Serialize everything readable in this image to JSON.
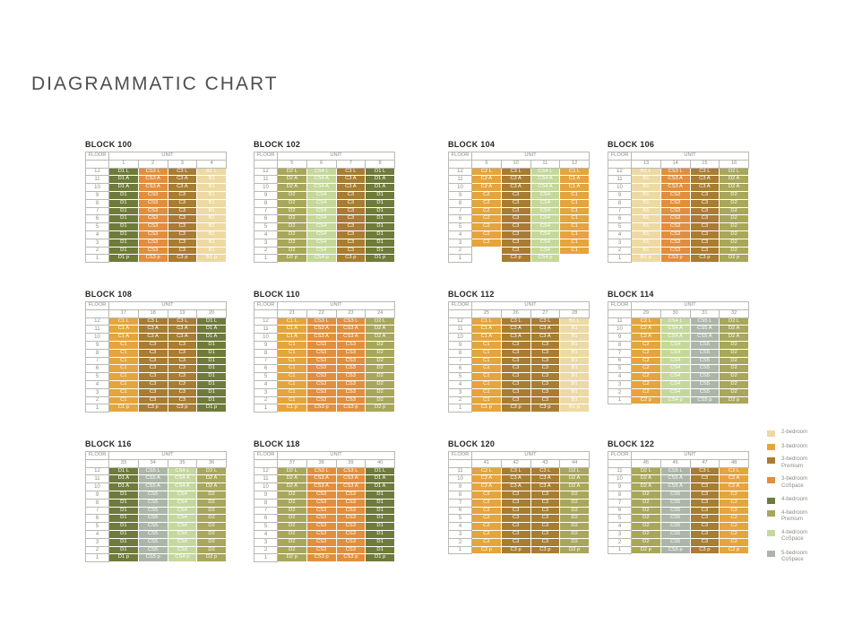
{
  "page_title": "DIAGRAMMATIC CHART",
  "table_headers": {
    "floor": "FLOOR",
    "unit": "UNIT"
  },
  "unit_colors": {
    "B1": "#edd9a3",
    "C1": "#e5a43c",
    "C2": "#e5a43c",
    "C3": "#a87c31",
    "CS3": "#e28e3c",
    "CS4": "#c5d89b",
    "CS5": "#abb5a8",
    "D1": "#6f7b3a",
    "D2": "#a8a75a"
  },
  "legend": {
    "items": [
      {
        "lines": [
          "2-bedroom"
        ],
        "color": "#edd9a3",
        "gap_before": false
      },
      {
        "lines": [
          "3-bedroom"
        ],
        "color": "#e5a43c",
        "gap_before": true
      },
      {
        "lines": [
          "3-bedroom",
          "Premium"
        ],
        "color": "#a87c31",
        "gap_before": false
      },
      {
        "lines": [
          "3-bedroom",
          "CoSpace"
        ],
        "color": "#e28e3c",
        "gap_before": false
      },
      {
        "lines": [
          "4-bedroom"
        ],
        "color": "#6f7b3a",
        "gap_before": true
      },
      {
        "lines": [
          "4-bedroom",
          "Premium"
        ],
        "color": "#a8a75a",
        "gap_before": false
      },
      {
        "lines": [
          "4-bedroom",
          "CoSpace"
        ],
        "color": "#c5d89b",
        "gap_before": false
      },
      {
        "lines": [
          "5-bedroom",
          "CoSpace"
        ],
        "color": "#abb5a8",
        "gap_before": true
      }
    ]
  },
  "blocks": [
    {
      "title": "BLOCK 100",
      "units": [
        "1",
        "2",
        "3",
        "4"
      ],
      "floors": [
        "12",
        "11",
        "10",
        "9",
        "8",
        "7",
        "6",
        "5",
        "4",
        "3",
        "2",
        "1"
      ],
      "rows": [
        [
          "D1 L",
          "CS3 L",
          "C3 L",
          "B1 L"
        ],
        [
          "D1 A",
          "CS3 A",
          "C3 A",
          "B1"
        ],
        [
          "D1 A",
          "CS3 A",
          "C3 A",
          "B1"
        ],
        [
          "D1",
          "CS3",
          "C3",
          "B1"
        ],
        [
          "D1",
          "CS3",
          "C3",
          "B1"
        ],
        [
          "D1",
          "CS3",
          "C3",
          "B1"
        ],
        [
          "D1",
          "CS3",
          "C3",
          "B1"
        ],
        [
          "D1",
          "CS3",
          "C3",
          "B1"
        ],
        [
          "D1",
          "CS3",
          "C3",
          "B1"
        ],
        [
          "D1",
          "CS3",
          "C3",
          "B1"
        ],
        [
          "D1",
          "CS3",
          "C3",
          "B1"
        ],
        [
          "D1 p",
          "CS3 p",
          "C3 p",
          "B1 p"
        ]
      ]
    },
    {
      "title": "BLOCK 102",
      "units": [
        "5",
        "6",
        "7",
        "8"
      ],
      "floors": [
        "12",
        "11",
        "10",
        "9",
        "8",
        "7",
        "6",
        "5",
        "4",
        "3",
        "2",
        "1"
      ],
      "rows": [
        [
          "D2 L",
          "CS4 L",
          "C3 L",
          "D1 L"
        ],
        [
          "D2 A",
          "CS4 A",
          "C3 A",
          "D1 A"
        ],
        [
          "D2 A",
          "CS4 A",
          "C3 A",
          "D1 A"
        ],
        [
          "D2",
          "CS4",
          "C3",
          "D1"
        ],
        [
          "D2",
          "CS4",
          "C3",
          "D1"
        ],
        [
          "D2",
          "CS4",
          "C3",
          "D1"
        ],
        [
          "D2",
          "CS4",
          "C3",
          "D1"
        ],
        [
          "D2",
          "CS4",
          "C3",
          "D1"
        ],
        [
          "D2",
          "CS4",
          "C3",
          "D1"
        ],
        [
          "D2",
          "CS4",
          "C3",
          "D1"
        ],
        [
          "D2",
          "CS4",
          "C3",
          "D1"
        ],
        [
          "D2 p",
          "CS4 p",
          "C3 p",
          "D1 p"
        ]
      ]
    },
    {
      "title": "BLOCK 104",
      "units": [
        "9",
        "10",
        "11",
        "12"
      ],
      "floors": [
        "12",
        "11",
        "10",
        "9",
        "8",
        "7",
        "6",
        "5",
        "4",
        "3",
        "2",
        "1"
      ],
      "rows": [
        [
          "C2 L",
          "C3 L",
          "CS4 L",
          "C1 L"
        ],
        [
          "C2 A",
          "C3 A",
          "CS4 A",
          "C1 A"
        ],
        [
          "C2 A",
          "C3 A",
          "CS4 A",
          "C1 A"
        ],
        [
          "C2",
          "C3",
          "CS4",
          "C1"
        ],
        [
          "C2",
          "C3",
          "CS4",
          "C1"
        ],
        [
          "C2",
          "C3",
          "CS4",
          "C1"
        ],
        [
          "C2",
          "C3",
          "CS4",
          "C1"
        ],
        [
          "C2",
          "C3",
          "CS4",
          "C1"
        ],
        [
          "C2",
          "C3",
          "CS4",
          "C1"
        ],
        [
          "C2",
          "C3",
          "CS4",
          "C1"
        ],
        [
          "",
          "C3",
          "CS4",
          "C1"
        ],
        [
          "",
          "C3 p",
          "CS4 p",
          ""
        ]
      ]
    },
    {
      "title": "BLOCK 106",
      "units": [
        "13",
        "14",
        "15",
        "16"
      ],
      "floors": [
        "12",
        "11",
        "10",
        "9",
        "8",
        "7",
        "6",
        "5",
        "4",
        "3",
        "2",
        "1"
      ],
      "rows": [
        [
          "B1 L",
          "CS3 L",
          "C3 L",
          "D2 L"
        ],
        [
          "B1",
          "CS3 A",
          "C3 A",
          "D2 A"
        ],
        [
          "B1",
          "CS3 A",
          "C3 A",
          "D2 A"
        ],
        [
          "B1",
          "CS3",
          "C3",
          "D2"
        ],
        [
          "B1",
          "CS3",
          "C3",
          "D2"
        ],
        [
          "B1",
          "CS3",
          "C3",
          "D2"
        ],
        [
          "B1",
          "CS3",
          "C3",
          "D2"
        ],
        [
          "B1",
          "CS3",
          "C3",
          "D2"
        ],
        [
          "B1",
          "CS3",
          "C3",
          "D2"
        ],
        [
          "B1",
          "CS3",
          "C3",
          "D2"
        ],
        [
          "B1",
          "CS3",
          "C3",
          "D2"
        ],
        [
          "B1 p",
          "CS3 p",
          "C3 p",
          "D2 p"
        ]
      ]
    },
    {
      "title": "BLOCK 108",
      "units": [
        "17",
        "18",
        "19",
        "20"
      ],
      "floors": [
        "12",
        "11",
        "10",
        "9",
        "8",
        "7",
        "6",
        "5",
        "4",
        "3",
        "2",
        "1"
      ],
      "rows": [
        [
          "C1 L",
          "C3 L",
          "C3 L",
          "D1 L"
        ],
        [
          "C1 A",
          "C3 A",
          "C3 A",
          "D1 A"
        ],
        [
          "C1 A",
          "C3 A",
          "C3 A",
          "D1 A"
        ],
        [
          "C1",
          "C3",
          "C3",
          "D1"
        ],
        [
          "C1",
          "C3",
          "C3",
          "D1"
        ],
        [
          "C1",
          "C3",
          "C3",
          "D1"
        ],
        [
          "C1",
          "C3",
          "C3",
          "D1"
        ],
        [
          "C1",
          "C3",
          "C3",
          "D1"
        ],
        [
          "C1",
          "C3",
          "C3",
          "D1"
        ],
        [
          "C1",
          "C3",
          "C3",
          "D1"
        ],
        [
          "C1",
          "C3",
          "C3",
          "D1"
        ],
        [
          "C1 p",
          "C3 p",
          "C3 p",
          "D1 p"
        ]
      ]
    },
    {
      "title": "BLOCK 110",
      "units": [
        "21",
        "22",
        "23",
        "24"
      ],
      "floors": [
        "12",
        "11",
        "10",
        "9",
        "8",
        "7",
        "6",
        "5",
        "4",
        "3",
        "2",
        "1"
      ],
      "rows": [
        [
          "C1 L",
          "CS3 L",
          "CS3 L",
          "D2 L"
        ],
        [
          "C1 A",
          "CS3 A",
          "CS3 A",
          "D2 A"
        ],
        [
          "C1 A",
          "CS3 A",
          "CS3 A",
          "D2 A"
        ],
        [
          "C1",
          "CS3",
          "CS3",
          "D2"
        ],
        [
          "C1",
          "CS3",
          "CS3",
          "D2"
        ],
        [
          "C1",
          "CS3",
          "CS3",
          "D2"
        ],
        [
          "C1",
          "CS3",
          "CS3",
          "D2"
        ],
        [
          "C1",
          "CS3",
          "CS3",
          "D2"
        ],
        [
          "C1",
          "CS3",
          "CS3",
          "D2"
        ],
        [
          "C1",
          "CS3",
          "CS3",
          "D2"
        ],
        [
          "C1",
          "CS3",
          "CS3",
          "D2"
        ],
        [
          "C1 p",
          "CS3 p",
          "CS3 p",
          "D2 p"
        ]
      ]
    },
    {
      "title": "BLOCK 112",
      "units": [
        "25",
        "26",
        "27",
        "28"
      ],
      "floors": [
        "12",
        "11",
        "10",
        "9",
        "8",
        "7",
        "6",
        "5",
        "4",
        "3",
        "2",
        "1"
      ],
      "rows": [
        [
          "C1 L",
          "C3 L",
          "C3 L",
          "B1 L"
        ],
        [
          "C1 A",
          "C3 A",
          "C3 A",
          "B1"
        ],
        [
          "C1 A",
          "C3 A",
          "C3 A",
          "B1"
        ],
        [
          "C1",
          "C3",
          "C3",
          "B1"
        ],
        [
          "C1",
          "C3",
          "C3",
          "B1"
        ],
        [
          "C1",
          "C3",
          "C3",
          "B1"
        ],
        [
          "C1",
          "C3",
          "C3",
          "B1"
        ],
        [
          "C1",
          "C3",
          "C3",
          "B1"
        ],
        [
          "C1",
          "C3",
          "C3",
          "B1"
        ],
        [
          "C1",
          "C3",
          "C3",
          "B1"
        ],
        [
          "C1",
          "C3",
          "C3",
          "B1"
        ],
        [
          "C1 p",
          "C3 p",
          "C3 p",
          "B1 p"
        ]
      ]
    },
    {
      "title": "BLOCK 114",
      "units": [
        "29",
        "30",
        "31",
        "32"
      ],
      "floors": [
        "11",
        "10",
        "9",
        "8",
        "7",
        "6",
        "5",
        "4",
        "3",
        "2",
        "1"
      ],
      "rows": [
        [
          "C2 L",
          "CS4 L",
          "CS5 L",
          "D2 L"
        ],
        [
          "C2 A",
          "CS4 A",
          "CS5 A",
          "D2 A"
        ],
        [
          "C2 A",
          "CS4 A",
          "CS5 A",
          "D2 A"
        ],
        [
          "C2",
          "CS4",
          "CS5",
          "D2"
        ],
        [
          "C2",
          "CS4",
          "CS5",
          "D2"
        ],
        [
          "C2",
          "CS4",
          "CS5",
          "D2"
        ],
        [
          "C2",
          "CS4",
          "CS5",
          "D2"
        ],
        [
          "C2",
          "CS4",
          "CS5",
          "D2"
        ],
        [
          "C2",
          "CS4",
          "CS5",
          "D2"
        ],
        [
          "C2",
          "CS4",
          "CS5",
          "D2"
        ],
        [
          "C2 p",
          "CS4 p",
          "CS5 p",
          "D2 p"
        ]
      ]
    },
    {
      "title": "BLOCK 116",
      "units": [
        "33",
        "34",
        "35",
        "36"
      ],
      "floors": [
        "12",
        "11",
        "10",
        "9",
        "8",
        "7",
        "6",
        "5",
        "4",
        "3",
        "2",
        "1"
      ],
      "rows": [
        [
          "D1 L",
          "CS5 L",
          "CS4 L",
          "D2 L"
        ],
        [
          "D1 A",
          "CS5 A",
          "CS4 A",
          "D2 A"
        ],
        [
          "D1 A",
          "CS5 A",
          "CS4 A",
          "D2 A"
        ],
        [
          "D1",
          "CS5",
          "CS4",
          "D2"
        ],
        [
          "D1",
          "CS5",
          "CS4",
          "D2"
        ],
        [
          "D1",
          "CS5",
          "CS4",
          "D2"
        ],
        [
          "D1",
          "CS5",
          "CS4",
          "D2"
        ],
        [
          "D1",
          "CS5",
          "CS4",
          "D2"
        ],
        [
          "D1",
          "CS5",
          "CS4",
          "D2"
        ],
        [
          "D1",
          "CS5",
          "CS4",
          "D2"
        ],
        [
          "D1",
          "CS5",
          "CS4",
          "D2"
        ],
        [
          "D1 p",
          "CS5 p",
          "CS4 p",
          "D2 p"
        ]
      ]
    },
    {
      "title": "BLOCK 118",
      "units": [
        "37",
        "38",
        "39",
        "40"
      ],
      "floors": [
        "12",
        "11",
        "10",
        "9",
        "8",
        "7",
        "6",
        "5",
        "4",
        "3",
        "2",
        "1"
      ],
      "rows": [
        [
          "D2 L",
          "CS3 L",
          "CS3 L",
          "D1 L"
        ],
        [
          "D2 A",
          "CS3 A",
          "CS3 A",
          "D1 A"
        ],
        [
          "D2 A",
          "CS3 A",
          "CS3 A",
          "D1 A"
        ],
        [
          "D2",
          "CS3",
          "CS3",
          "D1"
        ],
        [
          "D2",
          "CS3",
          "CS3",
          "D1"
        ],
        [
          "D2",
          "CS3",
          "CS3",
          "D1"
        ],
        [
          "D2",
          "CS3",
          "CS3",
          "D1"
        ],
        [
          "D2",
          "CS3",
          "CS3",
          "D1"
        ],
        [
          "D2",
          "CS3",
          "CS3",
          "D1"
        ],
        [
          "D2",
          "CS3",
          "CS3",
          "D1"
        ],
        [
          "D2",
          "CS3",
          "CS3",
          "D1"
        ],
        [
          "D2 p",
          "CS3 p",
          "CS3 p",
          "D1 p"
        ]
      ]
    },
    {
      "title": "BLOCK 120",
      "units": [
        "41",
        "42",
        "43",
        "44"
      ],
      "floors": [
        "11",
        "10",
        "9",
        "8",
        "7",
        "6",
        "5",
        "4",
        "3",
        "2",
        "1"
      ],
      "rows": [
        [
          "C2 L",
          "C3 L",
          "C3 L",
          "D2 L"
        ],
        [
          "C2 A",
          "C3 A",
          "C3 A",
          "D2 A"
        ],
        [
          "C2 A",
          "C3 A",
          "C3 A",
          "D2 A"
        ],
        [
          "C2",
          "C3",
          "C3",
          "D2"
        ],
        [
          "C2",
          "C3",
          "C3",
          "D2"
        ],
        [
          "C2",
          "C3",
          "C3",
          "D2"
        ],
        [
          "C2",
          "C3",
          "C3",
          "D2"
        ],
        [
          "C2",
          "C3",
          "C3",
          "D2"
        ],
        [
          "C2",
          "C3",
          "C3",
          "D2"
        ],
        [
          "C2",
          "C3",
          "C3",
          "D2"
        ],
        [
          "C2 p",
          "C3 p",
          "C3 p",
          "D2 p"
        ]
      ]
    },
    {
      "title": "BLOCK 122",
      "units": [
        "45",
        "46",
        "47",
        "48"
      ],
      "floors": [
        "11",
        "10",
        "9",
        "8",
        "7",
        "6",
        "5",
        "4",
        "3",
        "2",
        "1"
      ],
      "rows": [
        [
          "D2 L",
          "CS5 L",
          "C3 L",
          "C2 L"
        ],
        [
          "D2 A",
          "CS5 A",
          "C3",
          "C2 A"
        ],
        [
          "D2 A",
          "CS5 A",
          "C3",
          "C2 A"
        ],
        [
          "D2",
          "CS5",
          "C3",
          "C2"
        ],
        [
          "D2",
          "CS5",
          "C3",
          "C2"
        ],
        [
          "D2",
          "CS5",
          "C3",
          "C2"
        ],
        [
          "D2",
          "CS5",
          "C3",
          "C2"
        ],
        [
          "D2",
          "CS5",
          "C3",
          "C2"
        ],
        [
          "D2",
          "CS5",
          "C3",
          "C2"
        ],
        [
          "D2",
          "CS5",
          "C3",
          "C2"
        ],
        [
          "D2 p",
          "CS5 p",
          "C3 p",
          "C2 p"
        ]
      ]
    }
  ]
}
